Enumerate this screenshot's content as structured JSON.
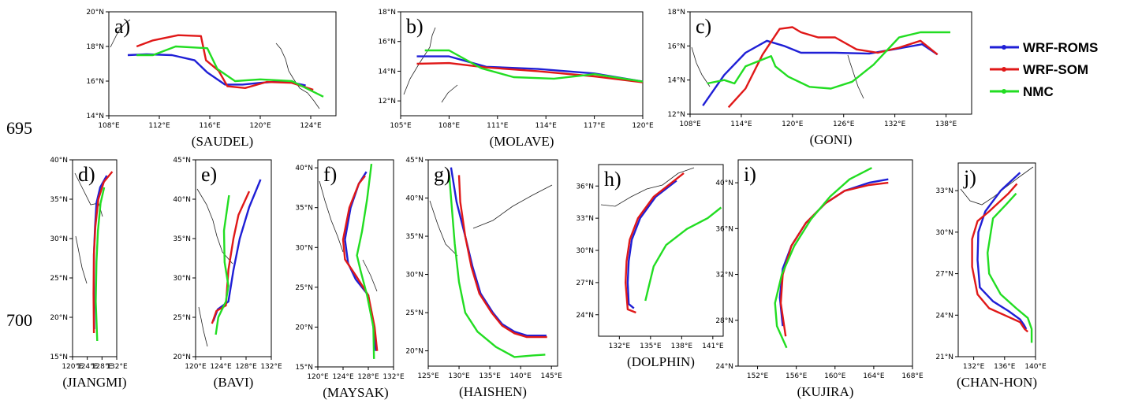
{
  "row_labels": [
    "695",
    "700"
  ],
  "legend": [
    {
      "label": "WRF-ROMS",
      "color": "#1f1fd6"
    },
    {
      "label": "WRF-SOM",
      "color": "#e01818"
    },
    {
      "label": "NMC",
      "color": "#22dd22"
    }
  ],
  "chart_data": [
    {
      "type": "line",
      "letter": "a)",
      "storm": "(SAUDEL)",
      "xlim": [
        108,
        126
      ],
      "ylim": [
        14,
        20
      ],
      "xticks": [
        108,
        112,
        116,
        120,
        124
      ],
      "xhem": "E",
      "yticks": [
        14,
        16,
        18,
        20
      ],
      "yhem": "N",
      "series": [
        {
          "name": "WRF-ROMS",
          "x": [
            109.5,
            111,
            113,
            114.8,
            115.8,
            117.2,
            118.6,
            120,
            122,
            123.6
          ],
          "y": [
            17.5,
            17.55,
            17.5,
            17.2,
            16.5,
            15.8,
            15.8,
            15.9,
            16,
            15.75
          ]
        },
        {
          "name": "WRF-SOM",
          "x": [
            110.2,
            111.5,
            113.5,
            115.3,
            115.7,
            116.7,
            117.4,
            118.8,
            120.5,
            122.5,
            124.2
          ],
          "y": [
            18,
            18.35,
            18.65,
            18.6,
            17.2,
            16.6,
            15.7,
            15.6,
            15.95,
            15.9,
            15.5
          ]
        },
        {
          "name": "NMC",
          "x": [
            110.2,
            111.5,
            113.3,
            115.8,
            116.6,
            118,
            120,
            122.5,
            125
          ],
          "y": [
            17.5,
            17.5,
            18,
            17.9,
            16.7,
            16,
            16.1,
            16,
            15.1
          ]
        }
      ]
    },
    {
      "type": "line",
      "letter": "b)",
      "storm": "(MOLAVE)",
      "xlim": [
        105,
        120
      ],
      "ylim": [
        11,
        18
      ],
      "xticks": [
        105,
        108,
        111,
        114,
        117,
        120
      ],
      "xhem": "E",
      "yticks": [
        12,
        14,
        16,
        18
      ],
      "yhem": "N",
      "series": [
        {
          "name": "WRF-ROMS",
          "x": [
            106,
            108,
            110.3,
            113.5,
            117,
            120
          ],
          "y": [
            15,
            15,
            14.3,
            14.15,
            13.85,
            13.3
          ]
        },
        {
          "name": "WRF-SOM",
          "x": [
            106,
            108,
            110.3,
            113.5,
            117,
            120
          ],
          "y": [
            14.5,
            14.55,
            14.25,
            14,
            13.65,
            13.25
          ]
        },
        {
          "name": "NMC",
          "x": [
            106.5,
            108,
            110,
            112,
            114.5,
            117,
            120
          ],
          "y": [
            15.4,
            15.4,
            14.2,
            13.6,
            13.5,
            13.8,
            13.3
          ]
        }
      ]
    },
    {
      "type": "line",
      "letter": "c)",
      "storm": "(GONI)",
      "xlim": [
        108,
        141
      ],
      "ylim": [
        12,
        18
      ],
      "xticks": [
        108,
        114,
        120,
        126,
        132,
        138
      ],
      "xhem": "E",
      "yticks": [
        12,
        14,
        16,
        18
      ],
      "yhem": "N",
      "series": [
        {
          "name": "WRF-ROMS",
          "x": [
            109.5,
            112,
            114.5,
            117,
            119,
            121,
            125,
            129,
            133,
            135.2,
            137
          ],
          "y": [
            12.5,
            14.3,
            15.6,
            16.3,
            16,
            15.6,
            15.6,
            15.55,
            15.9,
            16.1,
            15.5
          ]
        },
        {
          "name": "WRF-SOM",
          "x": [
            112.5,
            114.5,
            116.5,
            118.5,
            120,
            121,
            123,
            125,
            127.5,
            130,
            132.5,
            135,
            137
          ],
          "y": [
            12.4,
            13.5,
            15.5,
            17,
            17.1,
            16.8,
            16.5,
            16.5,
            15.8,
            15.6,
            15.9,
            16.3,
            15.5
          ]
        },
        {
          "name": "NMC",
          "x": [
            110,
            112,
            113.2,
            114.5,
            116,
            117.5,
            118,
            119.5,
            122,
            124.5,
            127,
            129.5,
            132.5,
            135,
            138.5
          ],
          "y": [
            13.8,
            14,
            13.8,
            14.8,
            15.1,
            15.4,
            14.8,
            14.2,
            13.6,
            13.5,
            13.9,
            14.9,
            16.5,
            16.8,
            16.8
          ]
        }
      ]
    },
    {
      "type": "line",
      "letter": "d)",
      "storm": "(JIANGMI)",
      "xlim": [
        120,
        132
      ],
      "ylim": [
        15,
        40
      ],
      "xticks": [
        120,
        124,
        128,
        132
      ],
      "xhem": "E",
      "yticks": [
        15,
        20,
        25,
        30,
        35,
        40
      ],
      "yhem": "N",
      "series": [
        {
          "name": "WRF-ROMS",
          "x": [
            125.9,
            125.8,
            125.8,
            126.1,
            126.5,
            127.5,
            129.3
          ],
          "y": [
            18.5,
            23,
            28,
            31.5,
            34.5,
            36.5,
            38
          ]
        },
        {
          "name": "WRF-SOM",
          "x": [
            125.8,
            125.7,
            125.8,
            126.2,
            127,
            128.5,
            130.8
          ],
          "y": [
            18,
            23,
            28,
            31.5,
            35,
            37.2,
            38.5
          ]
        },
        {
          "name": "NMC",
          "x": [
            126.7,
            126.3,
            126.5,
            126.9,
            127.6,
            128.6
          ],
          "y": [
            17,
            22,
            27,
            31,
            34.5,
            36.5
          ]
        }
      ]
    },
    {
      "type": "line",
      "letter": "e)",
      "storm": "(BAVI)",
      "xlim": [
        120,
        132
      ],
      "ylim": [
        20,
        45
      ],
      "xticks": [
        120,
        124,
        128,
        132
      ],
      "xhem": "E",
      "yticks": [
        20,
        25,
        30,
        35,
        40,
        45
      ],
      "yhem": "N",
      "series": [
        {
          "name": "WRF-ROMS",
          "x": [
            122.8,
            123.5,
            125.2,
            126,
            127,
            128.5,
            130.3
          ],
          "y": [
            24.5,
            26,
            27,
            31,
            35,
            39,
            42.5
          ]
        },
        {
          "name": "WRF-SOM",
          "x": [
            122.6,
            123.3,
            124.8,
            125.2,
            126,
            126.8,
            128.5
          ],
          "y": [
            24.2,
            25.8,
            26.5,
            31,
            35,
            38,
            41
          ]
        },
        {
          "name": "NMC",
          "x": [
            123.2,
            123.6,
            124.8,
            125.2,
            124.6,
            124.5,
            125.3
          ],
          "y": [
            22.8,
            25,
            27,
            29,
            32,
            36,
            40.5
          ]
        }
      ]
    },
    {
      "type": "line",
      "letter": "f)",
      "storm": "(MAYSAK)",
      "xlim": [
        120,
        132
      ],
      "ylim": [
        15,
        41
      ],
      "xticks": [
        120,
        124,
        128,
        132
      ],
      "xhem": "E",
      "yticks": [
        15,
        20,
        25,
        30,
        35,
        40
      ],
      "yhem": "N",
      "series": [
        {
          "name": "WRF-ROMS",
          "x": [
            129.2,
            128.8,
            128,
            126,
            124.8,
            124.3,
            125.2,
            126.5,
            127.7
          ],
          "y": [
            17,
            20,
            24,
            26,
            28,
            31,
            35,
            38,
            39.5
          ]
        },
        {
          "name": "WRF-SOM",
          "x": [
            129.4,
            129,
            128,
            126,
            124.3,
            124,
            125,
            126.5,
            127.5
          ],
          "y": [
            17,
            20,
            24,
            26.5,
            28.5,
            31,
            35,
            38,
            39
          ]
        },
        {
          "name": "NMC",
          "x": [
            128.9,
            128.8,
            127.8,
            126.8,
            126.2,
            127,
            127.8,
            128.5
          ],
          "y": [
            16,
            20,
            24,
            27,
            29,
            32,
            36,
            40.5
          ]
        }
      ]
    },
    {
      "type": "line",
      "letter": "g)",
      "storm": "(HAISHEN)",
      "xlim": [
        125,
        146
      ],
      "ylim": [
        18,
        45
      ],
      "xticks": [
        125,
        130,
        135,
        140,
        145
      ],
      "xhem": "E",
      "yticks": [
        20,
        25,
        30,
        35,
        40,
        45
      ],
      "yhem": "N",
      "series": [
        {
          "name": "WRF-ROMS",
          "x": [
            144.2,
            141,
            139,
            137,
            135.5,
            133.5,
            132.2,
            131,
            129.6,
            128.7
          ],
          "y": [
            22,
            22,
            22.5,
            23.5,
            25,
            27.5,
            31,
            35,
            39.5,
            44
          ]
        },
        {
          "name": "WRF-SOM",
          "x": [
            144.3,
            141,
            139,
            137,
            135.3,
            133.3,
            132,
            131,
            130.2,
            130
          ],
          "y": [
            21.8,
            21.8,
            22.3,
            23.3,
            25,
            27.5,
            31,
            35,
            39.5,
            43
          ]
        },
        {
          "name": "NMC",
          "x": [
            144,
            142,
            139,
            136,
            133,
            131,
            130,
            129.3,
            128.4
          ],
          "y": [
            19.5,
            19.4,
            19.2,
            20.5,
            22.5,
            25,
            29,
            34,
            43
          ]
        }
      ]
    },
    {
      "type": "line",
      "letter": "h)",
      "storm": "(DOLPHIN)",
      "xlim": [
        130,
        142
      ],
      "ylim": [
        22,
        38
      ],
      "xticks": [
        132,
        135,
        138,
        141
      ],
      "xhem": "E",
      "yticks": [
        24,
        27,
        30,
        33,
        36
      ],
      "yhem": "N",
      "series": [
        {
          "name": "WRF-ROMS",
          "x": [
            133.4,
            132.9,
            132.8,
            132.9,
            133.2,
            134,
            135.5,
            137.5
          ],
          "y": [
            24.6,
            25,
            27,
            29,
            31,
            33,
            35,
            36.5
          ]
        },
        {
          "name": "WRF-SOM",
          "x": [
            133.6,
            132.8,
            132.6,
            132.7,
            133,
            133.8,
            135.3,
            138.2
          ],
          "y": [
            24.2,
            24.5,
            27,
            29,
            31,
            33,
            35,
            37.2
          ]
        },
        {
          "name": "NMC",
          "x": [
            134.5,
            134.8,
            135.3,
            136.5,
            138.5,
            140.5,
            141.8
          ],
          "y": [
            25.3,
            26.5,
            28.5,
            30.5,
            32,
            33,
            34
          ]
        }
      ]
    },
    {
      "type": "line",
      "letter": "i)",
      "storm": "(KUJIRA)",
      "xlim": [
        150,
        168
      ],
      "ylim": [
        24,
        42
      ],
      "xticks": [
        152,
        156,
        160,
        164,
        168
      ],
      "xhem": "E",
      "yticks": [
        24,
        28,
        32,
        36,
        40
      ],
      "yhem": "N",
      "series": [
        {
          "name": "WRF-ROMS",
          "x": [
            154.6,
            154.3,
            154.6,
            155.5,
            157,
            159,
            161,
            163.5,
            165.5
          ],
          "y": [
            27.5,
            30,
            32.5,
            34.5,
            36.5,
            38.2,
            39.3,
            40,
            40.3
          ]
        },
        {
          "name": "WRF-SOM",
          "x": [
            154.9,
            154.4,
            154.6,
            155.5,
            157,
            159,
            161,
            163.5,
            165.5
          ],
          "y": [
            26.6,
            29.5,
            32,
            34.5,
            36.5,
            38.2,
            39.3,
            39.8,
            40
          ]
        },
        {
          "name": "NMC",
          "x": [
            155,
            154,
            153.8,
            154.5,
            155.8,
            157.5,
            159.5,
            161.5,
            163.8
          ],
          "y": [
            25.6,
            27.5,
            29.5,
            32,
            34.5,
            36.8,
            38.8,
            40.3,
            41.3
          ]
        }
      ]
    },
    {
      "type": "line",
      "letter": "j)",
      "storm": "(CHAN-HON)",
      "xlim": [
        130,
        140
      ],
      "ylim": [
        21,
        35
      ],
      "xticks": [
        132,
        136,
        140
      ],
      "xhem": "E",
      "yticks": [
        21,
        24,
        27,
        30,
        33
      ],
      "yhem": "N",
      "series": [
        {
          "name": "WRF-ROMS",
          "x": [
            138.8,
            138.5,
            138,
            136.5,
            134.5,
            132.8,
            132.5,
            132.6,
            133.5,
            135.5,
            138
          ],
          "y": [
            23,
            23.3,
            23.7,
            24.3,
            25,
            26,
            28,
            30,
            31.5,
            33,
            34.3
          ]
        },
        {
          "name": "WRF-SOM",
          "x": [
            139,
            138.6,
            138,
            136,
            134,
            132.5,
            131.8,
            131.8,
            132.5,
            134,
            136.5,
            137.6
          ],
          "y": [
            22.8,
            23,
            23.5,
            24,
            24.5,
            25.5,
            27.5,
            29.5,
            30.8,
            31.5,
            32.8,
            33.5
          ]
        },
        {
          "name": "NMC",
          "x": [
            139.5,
            139.5,
            139,
            137.5,
            135.5,
            134,
            133.8,
            134.5,
            136.2,
            137.5
          ],
          "y": [
            22,
            23,
            23.8,
            24.5,
            25.5,
            27,
            28.5,
            31,
            32,
            32.8
          ]
        }
      ]
    }
  ]
}
